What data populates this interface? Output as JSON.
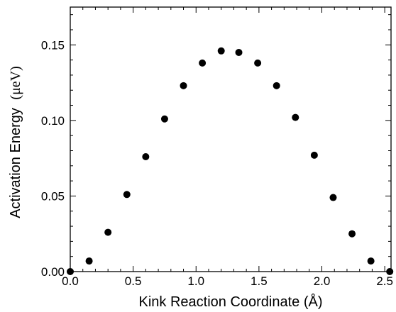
{
  "chart_data": {
    "type": "scatter",
    "title": "",
    "xlabel": "Kink Reaction Coordinate (Å)",
    "ylabel": "Activation Energy",
    "ylabel_unit": "(μeV)",
    "xlim": [
      0.0,
      2.55
    ],
    "ylim": [
      0.0,
      0.175
    ],
    "x_ticks": [
      0.0,
      0.5,
      1.0,
      1.5,
      2.0,
      2.5
    ],
    "x_tick_labels": [
      "0.0",
      "0.5",
      "1.0",
      "1.5",
      "2.0",
      "2.5"
    ],
    "y_ticks": [
      0.0,
      0.05,
      0.1,
      0.15
    ],
    "y_tick_labels": [
      "0.00",
      "0.05",
      "0.10",
      "0.15"
    ],
    "x_minor_step": 0.1,
    "y_minor_step": 0.01,
    "grid": false,
    "marker_color": "#000000",
    "series": [
      {
        "x": [
          0.0,
          0.15,
          0.3,
          0.45,
          0.6,
          0.75,
          0.9,
          1.05,
          1.2,
          1.34,
          1.49,
          1.64,
          1.79,
          1.94,
          2.09,
          2.24,
          2.39,
          2.54
        ],
        "y": [
          0.0,
          0.007,
          0.026,
          0.051,
          0.076,
          0.101,
          0.123,
          0.138,
          0.146,
          0.145,
          0.138,
          0.123,
          0.102,
          0.077,
          0.049,
          0.025,
          0.007,
          0.0
        ]
      }
    ]
  }
}
